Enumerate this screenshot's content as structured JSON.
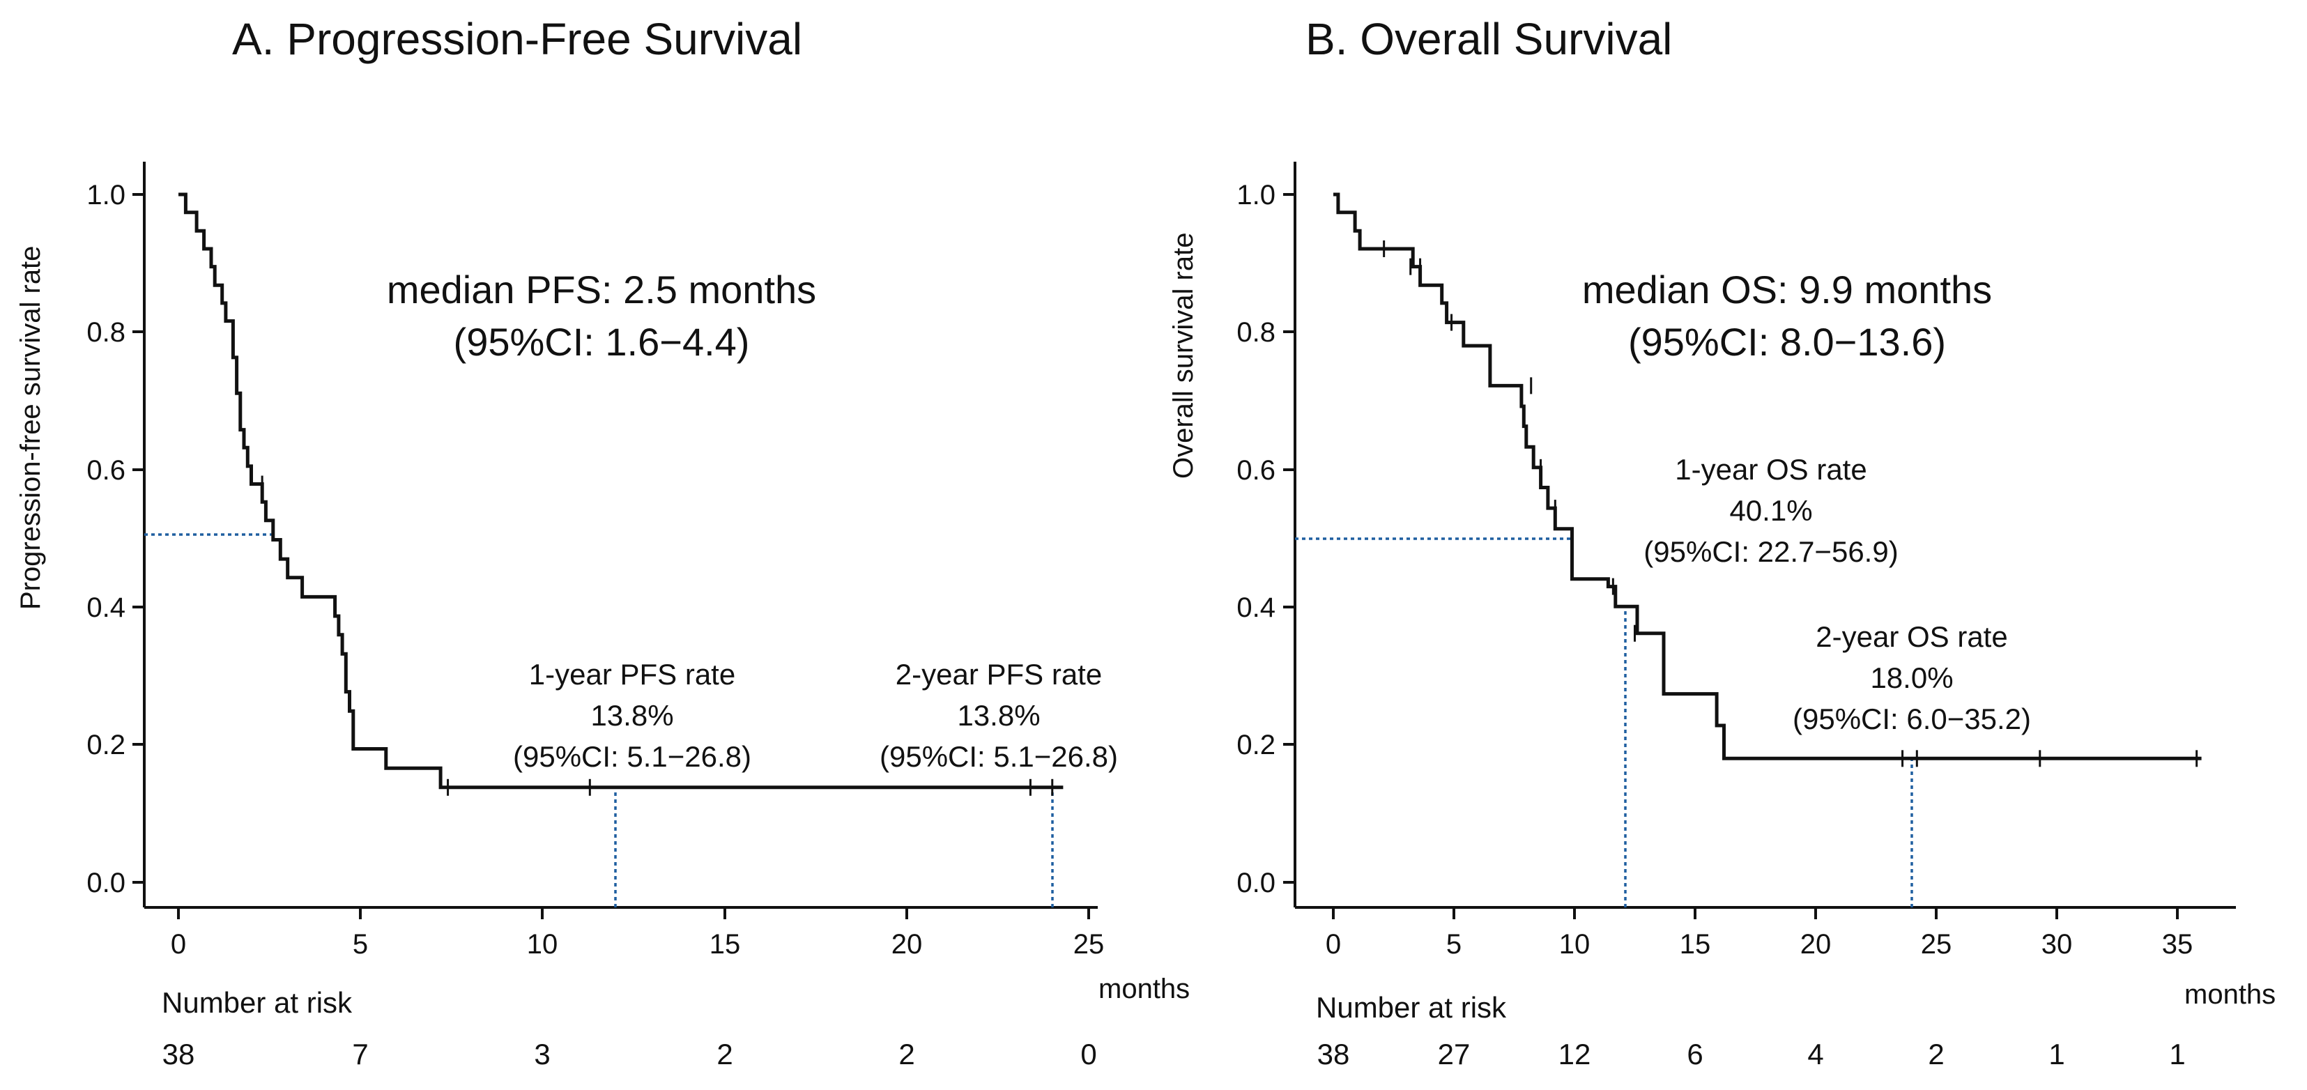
{
  "chart_data": [
    {
      "type": "line",
      "subtype": "kaplan-meier",
      "title": "A. Progression-Free Survival",
      "ylabel": "Progression-free survival rate",
      "xlabel": "months",
      "xlim": [
        0,
        25
      ],
      "ylim": [
        0,
        1.0
      ],
      "xticks": [
        0,
        5,
        10,
        15,
        20,
        25
      ],
      "xtick_labels": [
        "0",
        "5",
        "10",
        "15",
        "20",
        "25"
      ],
      "yticks": [
        0.0,
        0.2,
        0.4,
        0.6,
        0.8,
        1.0
      ],
      "ytick_labels": [
        "0.0",
        "0.2",
        "0.4",
        "0.6",
        "0.8",
        "1.0"
      ],
      "curve": [
        [
          0,
          1.0
        ],
        [
          0.2,
          0.974
        ],
        [
          0.5,
          0.947
        ],
        [
          0.7,
          0.921
        ],
        [
          0.9,
          0.895
        ],
        [
          1.0,
          0.868
        ],
        [
          1.2,
          0.842
        ],
        [
          1.3,
          0.816
        ],
        [
          1.5,
          0.763
        ],
        [
          1.6,
          0.711
        ],
        [
          1.7,
          0.658
        ],
        [
          1.8,
          0.632
        ],
        [
          1.9,
          0.605
        ],
        [
          2.0,
          0.579
        ],
        [
          2.3,
          0.553
        ],
        [
          2.4,
          0.526
        ],
        [
          2.6,
          0.498
        ],
        [
          2.8,
          0.47
        ],
        [
          3.0,
          0.443
        ],
        [
          3.4,
          0.415
        ],
        [
          4.3,
          0.387
        ],
        [
          4.4,
          0.36
        ],
        [
          4.5,
          0.332
        ],
        [
          4.6,
          0.277
        ],
        [
          4.7,
          0.249
        ],
        [
          4.8,
          0.194
        ],
        [
          5.7,
          0.166
        ],
        [
          7.2,
          0.138
        ],
        [
          24.3,
          0.138
        ]
      ],
      "censored": [
        [
          2.3,
          0.579
        ],
        [
          7.4,
          0.138
        ],
        [
          11.3,
          0.138
        ],
        [
          23.4,
          0.138
        ],
        [
          24.0,
          0.138
        ]
      ],
      "median": {
        "x": 2.5,
        "y": 0.5,
        "label": "median PFS: 2.5 months",
        "ci": "(95%CI: 1.6−4.4)"
      },
      "landmarks": [
        {
          "x": 12,
          "y": 0.138,
          "label": "1-year PFS rate",
          "value": "13.8%",
          "ci": "(95%CI: 5.1−26.8)"
        },
        {
          "x": 24,
          "y": 0.138,
          "label": "2-year PFS rate",
          "value": "13.8%",
          "ci": "(95%CI: 5.1−26.8)"
        }
      ],
      "risk_table": {
        "label": "Number at risk",
        "times": [
          0,
          5,
          10,
          15,
          20,
          25
        ],
        "values": [
          "38",
          "7",
          "3",
          "2",
          "2",
          "0"
        ]
      }
    },
    {
      "type": "line",
      "subtype": "kaplan-meier",
      "title": "B. Overall Survival",
      "ylabel": "Overall survival rate",
      "xlabel": "months",
      "xlim": [
        0,
        36
      ],
      "ylim": [
        0,
        1.0
      ],
      "xticks": [
        0,
        5,
        10,
        15,
        20,
        25,
        30,
        35
      ],
      "xtick_labels": [
        "0",
        "5",
        "10",
        "15",
        "20",
        "25",
        "30",
        "35"
      ],
      "yticks": [
        0.0,
        0.2,
        0.4,
        0.6,
        0.8,
        1.0
      ],
      "ytick_labels": [
        "0.0",
        "0.2",
        "0.4",
        "0.6",
        "0.8",
        "1.0"
      ],
      "curve": [
        [
          0,
          1.0
        ],
        [
          0.2,
          0.974
        ],
        [
          0.9,
          0.947
        ],
        [
          1.1,
          0.921
        ],
        [
          3.3,
          0.895
        ],
        [
          3.6,
          0.868
        ],
        [
          4.5,
          0.842
        ],
        [
          4.7,
          0.814
        ],
        [
          5.4,
          0.78
        ],
        [
          6.5,
          0.722
        ],
        [
          7.8,
          0.692
        ],
        [
          7.9,
          0.663
        ],
        [
          8.0,
          0.633
        ],
        [
          8.3,
          0.603
        ],
        [
          8.6,
          0.574
        ],
        [
          8.9,
          0.544
        ],
        [
          9.2,
          0.514
        ],
        [
          9.9,
          0.441
        ],
        [
          11.4,
          0.43
        ],
        [
          11.7,
          0.401
        ],
        [
          12.6,
          0.362
        ],
        [
          13.7,
          0.274
        ],
        [
          15.9,
          0.228
        ],
        [
          16.2,
          0.18
        ],
        [
          36.0,
          0.18
        ]
      ],
      "censored": [
        [
          2.1,
          0.921
        ],
        [
          3.2,
          0.895
        ],
        [
          3.6,
          0.895
        ],
        [
          4.9,
          0.814
        ],
        [
          8.2,
          0.722
        ],
        [
          8.6,
          0.603
        ],
        [
          9.2,
          0.544
        ],
        [
          11.6,
          0.43
        ],
        [
          12.5,
          0.362
        ],
        [
          23.6,
          0.18
        ],
        [
          24.2,
          0.18
        ],
        [
          29.3,
          0.18
        ],
        [
          35.8,
          0.18
        ]
      ],
      "median": {
        "x": 9.9,
        "y": 0.5,
        "label": "median OS: 9.9 months",
        "ci": "(95%CI: 8.0−13.6)"
      },
      "landmarks": [
        {
          "x": 12,
          "y": 0.401,
          "label": "1-year OS rate",
          "value": "40.1%",
          "ci": "(95%CI: 22.7−56.9)"
        },
        {
          "x": 24,
          "y": 0.18,
          "label": "2-year OS rate",
          "value": "18.0%",
          "ci": "(95%CI: 6.0−35.2)"
        }
      ],
      "risk_table": {
        "label": "Number at risk",
        "times": [
          0,
          5,
          10,
          15,
          20,
          25,
          30,
          35
        ],
        "values": [
          "38",
          "27",
          "12",
          "6",
          "4",
          "2",
          "1",
          "1"
        ]
      }
    }
  ]
}
